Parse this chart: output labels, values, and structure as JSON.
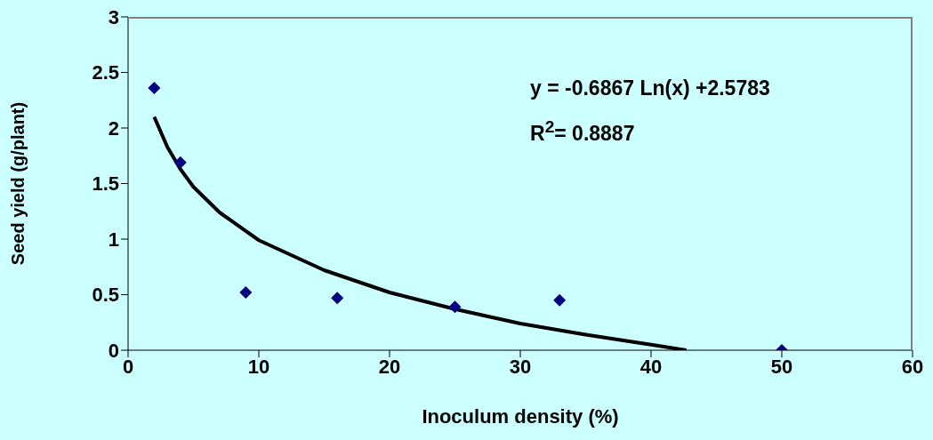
{
  "chart_data": {
    "type": "scatter",
    "xlabel": "Inoculum density (%)",
    "ylabel": "Seed yield (g/plant)",
    "xlim": [
      0,
      60
    ],
    "xticks": [
      0,
      10,
      20,
      30,
      40,
      50,
      60
    ],
    "ylim": [
      0,
      3
    ],
    "yticks": [
      0,
      0.5,
      1,
      1.5,
      2,
      2.5,
      3
    ],
    "series": [
      {
        "color": "#000080",
        "marker": "diamond",
        "x": [
          2,
          4,
          9,
          16,
          25,
          33,
          50
        ],
        "values": [
          2.36,
          1.69,
          0.52,
          0.47,
          0.39,
          0.45,
          0
        ]
      },
      {
        "type": "line",
        "color": "#000000",
        "marker": "none",
        "line_style": "solid",
        "x": [
          2,
          3,
          4,
          5,
          7,
          10,
          15,
          20,
          25,
          30,
          35,
          40,
          42.7
        ],
        "values": [
          2.1,
          1.83,
          1.63,
          1.47,
          1.24,
          0.99,
          0.72,
          0.52,
          0.37,
          0.24,
          0.14,
          0.05,
          0
        ]
      }
    ],
    "annotations": [
      "y = -0.6867 Ln(x) +2.5783",
      "R$^{2}$= 0.8887"
    ],
    "grid": false
  }
}
